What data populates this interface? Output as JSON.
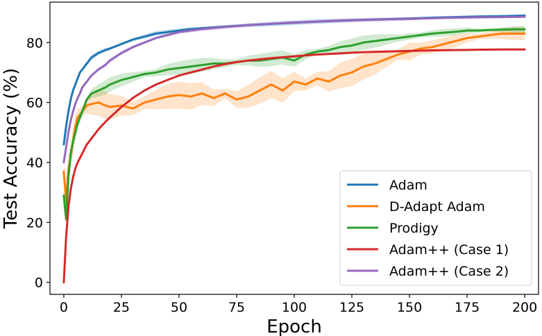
{
  "chart_data": {
    "type": "line",
    "title": "",
    "xlabel": "Epoch",
    "ylabel": "Test Accuracy (%)",
    "xlim": [
      -6,
      206
    ],
    "ylim": [
      -4,
      93.5
    ],
    "xticks": [
      0,
      25,
      50,
      75,
      100,
      125,
      150,
      175,
      200
    ],
    "yticks": [
      0,
      20,
      40,
      60,
      80
    ],
    "grid": false,
    "legend_position": "lower-right",
    "series": [
      {
        "name": "Adam",
        "color": "#1f77b4",
        "x": [
          0,
          1,
          2,
          3,
          4,
          5,
          6,
          7,
          8,
          10,
          12,
          15,
          18,
          20,
          25,
          30,
          35,
          40,
          45,
          50,
          55,
          60,
          70,
          80,
          90,
          100,
          110,
          120,
          130,
          140,
          150,
          160,
          170,
          180,
          190,
          200
        ],
        "y": [
          46,
          52,
          57,
          61,
          64,
          66,
          68,
          70,
          71,
          73,
          75,
          76.5,
          77.5,
          78,
          79.5,
          81,
          82,
          83,
          83.5,
          84,
          84.5,
          84.8,
          85.3,
          85.8,
          86.2,
          86.6,
          87,
          87.3,
          87.6,
          87.8,
          88,
          88.3,
          88.5,
          88.7,
          88.8,
          89
        ]
      },
      {
        "name": "D-Adapt Adam",
        "color": "#ff7f0e",
        "x": [
          0,
          1,
          2,
          3,
          4,
          5,
          6,
          8,
          10,
          12,
          15,
          18,
          20,
          25,
          30,
          35,
          40,
          45,
          50,
          55,
          60,
          65,
          70,
          75,
          80,
          85,
          90,
          95,
          100,
          105,
          110,
          115,
          120,
          125,
          130,
          135,
          140,
          145,
          150,
          155,
          160,
          165,
          170,
          175,
          180,
          185,
          190,
          195,
          200
        ],
        "y": [
          37,
          27,
          38,
          42,
          47,
          52,
          55,
          57,
          59,
          59.5,
          60,
          59,
          58.5,
          59,
          58,
          60,
          61,
          62,
          62.5,
          62,
          63,
          61.5,
          63,
          61,
          62,
          64,
          66,
          64,
          67,
          66,
          68,
          67,
          69,
          70,
          72,
          73,
          74.5,
          76,
          77,
          78,
          78.5,
          79.5,
          80.5,
          81.5,
          82,
          82.5,
          83,
          83,
          83
        ]
      },
      {
        "name": "Prodigy",
        "color": "#2ca02c",
        "x": [
          0,
          1,
          2,
          3,
          4,
          5,
          6,
          8,
          10,
          12,
          15,
          18,
          20,
          25,
          30,
          35,
          40,
          45,
          50,
          55,
          60,
          65,
          70,
          75,
          80,
          85,
          90,
          95,
          100,
          105,
          110,
          115,
          120,
          125,
          130,
          135,
          140,
          145,
          150,
          155,
          160,
          165,
          170,
          175,
          180,
          185,
          190,
          195,
          200
        ],
        "y": [
          29,
          21,
          35,
          43,
          47,
          50,
          53,
          57,
          61,
          63,
          64,
          65,
          66,
          67.5,
          68.5,
          69.5,
          70,
          71,
          71.5,
          72,
          72.5,
          73,
          73,
          73.5,
          74,
          74,
          74.5,
          75,
          74,
          76,
          77,
          77.5,
          78.5,
          79,
          80,
          80.5,
          81,
          81.5,
          82,
          82.5,
          83,
          83.3,
          83.6,
          84,
          84,
          84.2,
          84.3,
          84.4,
          84.4
        ]
      },
      {
        "name": "Adam++ (Case 1)",
        "color": "#d62728",
        "x": [
          0,
          1,
          2,
          3,
          4,
          5,
          6,
          8,
          10,
          12,
          15,
          18,
          20,
          25,
          30,
          35,
          40,
          45,
          50,
          55,
          60,
          65,
          70,
          75,
          80,
          90,
          100,
          110,
          120,
          130,
          140,
          150,
          160,
          170,
          180,
          190,
          200
        ],
        "y": [
          0,
          15,
          25,
          31,
          35,
          38,
          40,
          43,
          46,
          48,
          51,
          53.5,
          55,
          58.5,
          61.5,
          64,
          66,
          67.5,
          69,
          70,
          71,
          72,
          72.8,
          73.5,
          74,
          74.8,
          75.4,
          76,
          76.4,
          76.8,
          77,
          77.2,
          77.4,
          77.5,
          77.6,
          77.7,
          77.7
        ]
      },
      {
        "name": "Adam++ (Case 2)",
        "color": "#9467bd",
        "x": [
          0,
          1,
          2,
          3,
          4,
          5,
          6,
          7,
          8,
          10,
          12,
          15,
          18,
          20,
          25,
          30,
          35,
          40,
          45,
          50,
          55,
          60,
          70,
          80,
          90,
          100,
          110,
          120,
          130,
          140,
          150,
          160,
          170,
          180,
          190,
          200
        ],
        "y": [
          40,
          45,
          50,
          54,
          57,
          59.5,
          61.5,
          63,
          65,
          67,
          69,
          71,
          72.5,
          74,
          76.5,
          78.5,
          80,
          81.5,
          82.5,
          83.5,
          84,
          84.5,
          85.2,
          85.8,
          86.3,
          86.7,
          87,
          87.3,
          87.5,
          87.7,
          87.9,
          88.1,
          88.3,
          88.4,
          88.5,
          88.6
        ]
      }
    ]
  }
}
